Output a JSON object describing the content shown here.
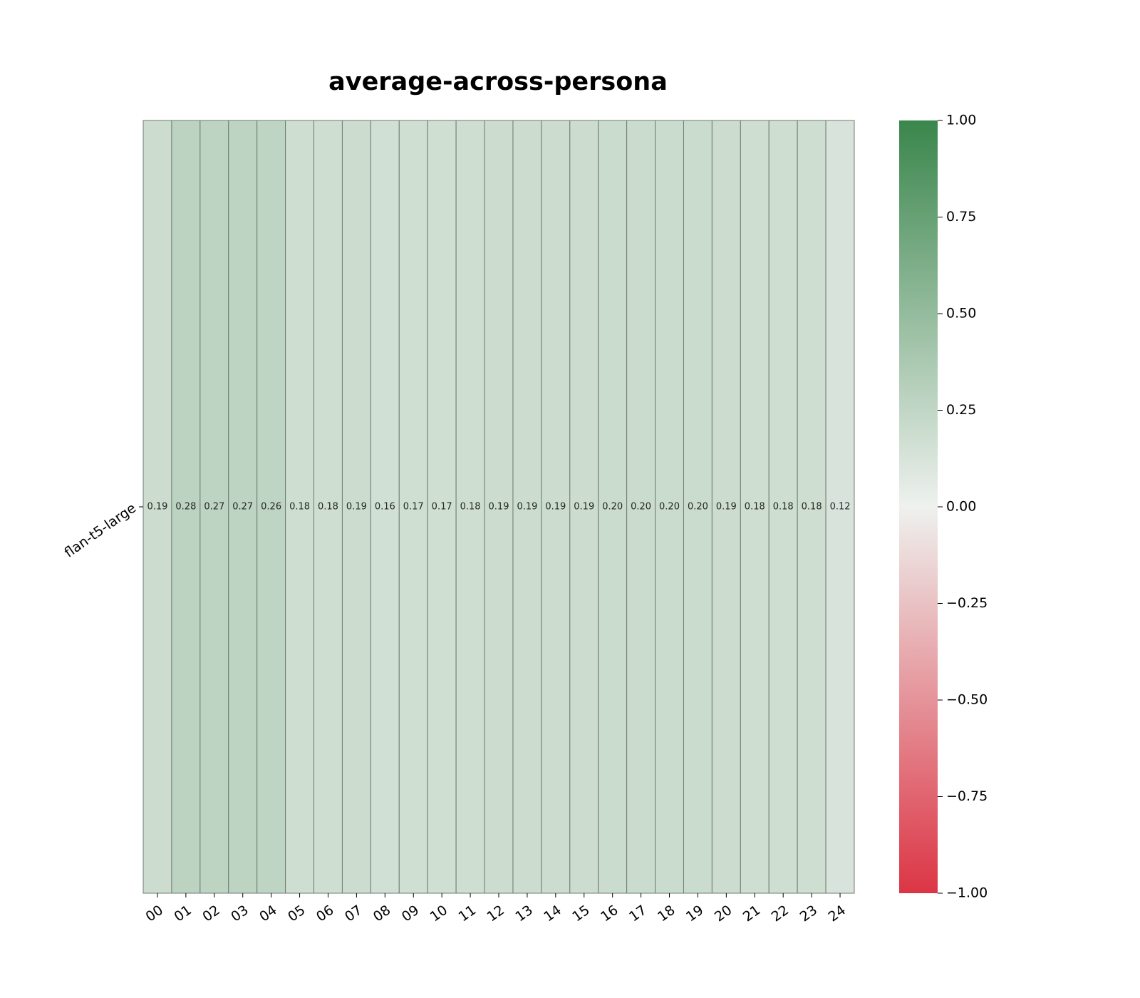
{
  "chart_data": {
    "type": "heatmap",
    "title": "average-across-persona",
    "rows": [
      "flan-t5-large"
    ],
    "columns": [
      "00",
      "01",
      "02",
      "03",
      "04",
      "05",
      "06",
      "07",
      "08",
      "09",
      "10",
      "11",
      "12",
      "13",
      "14",
      "15",
      "16",
      "17",
      "18",
      "19",
      "20",
      "21",
      "22",
      "23",
      "24"
    ],
    "values": [
      [
        0.19,
        0.28,
        0.27,
        0.27,
        0.26,
        0.18,
        0.18,
        0.19,
        0.16,
        0.17,
        0.17,
        0.18,
        0.19,
        0.19,
        0.19,
        0.19,
        0.2,
        0.2,
        0.2,
        0.2,
        0.19,
        0.18,
        0.18,
        0.18,
        0.12
      ]
    ],
    "value_labels": [
      [
        "0.19",
        "0.28",
        "0.27",
        "0.27",
        "0.26",
        "0.18",
        "0.18",
        "0.19",
        "0.16",
        "0.17",
        "0.17",
        "0.18",
        "0.19",
        "0.19",
        "0.19",
        "0.19",
        "0.20",
        "0.20",
        "0.20",
        "0.20",
        "0.19",
        "0.18",
        "0.18",
        "0.18",
        "0.12"
      ]
    ],
    "colorbar": {
      "range": [
        -1.0,
        1.0
      ],
      "ticks": [
        1.0,
        0.75,
        0.5,
        0.25,
        0.0,
        -0.25,
        -0.5,
        -0.75,
        -1.0
      ],
      "tick_labels": [
        "1.00",
        "0.75",
        "0.50",
        "0.25",
        "0.00",
        "−0.25",
        "−0.50",
        "−0.75",
        "−1.00"
      ],
      "colors": {
        "low": "#dc3545",
        "mid": "#eef1ee",
        "high": "#3a864c"
      }
    }
  }
}
